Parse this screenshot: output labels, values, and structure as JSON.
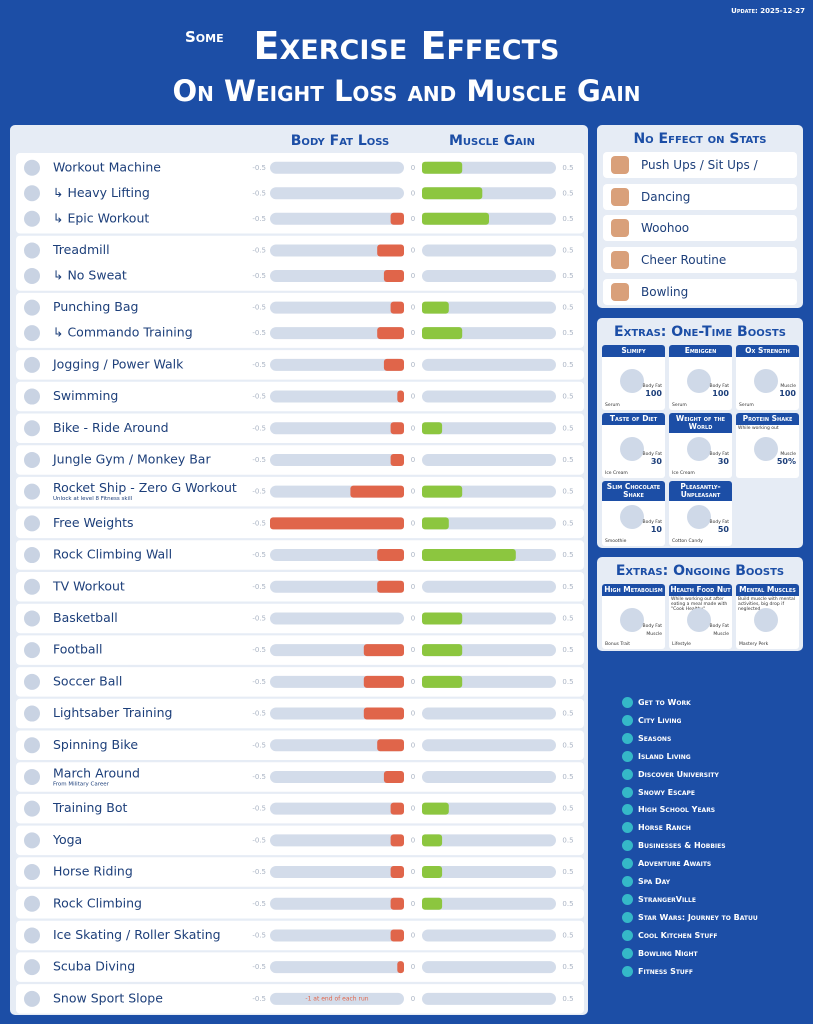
{
  "header": {
    "update": "Update: 2025-12-27",
    "prefix": "Some",
    "title": "Exercise Effects",
    "subtitle": "On Weight Loss and Muscle Gain"
  },
  "table": {
    "columns": [
      "Body Fat Loss",
      "Muscle Gain"
    ],
    "fat_range": [
      -0.5,
      0
    ],
    "muscle_range": [
      0,
      0.5
    ],
    "groups": [
      {
        "rows": [
          {
            "name": "Workout Machine",
            "fat": 0,
            "muscle": 0.15
          },
          {
            "name": "↳ Heavy Lifting",
            "fat": 0,
            "muscle": 0.225
          },
          {
            "name": "↳ Epic Workout",
            "fat": -0.05,
            "muscle": 0.25
          }
        ]
      },
      {
        "rows": [
          {
            "name": "Treadmill",
            "fat": -0.1,
            "muscle": 0
          },
          {
            "name": "↳ No Sweat",
            "fat": -0.075,
            "muscle": 0
          }
        ]
      },
      {
        "rows": [
          {
            "name": "Punching Bag",
            "fat": -0.05,
            "muscle": 0.1
          },
          {
            "name": "↳ Commando Training",
            "fat": -0.1,
            "muscle": 0.15
          }
        ]
      },
      {
        "rows": [
          {
            "name": "Jogging / Power Walk",
            "fat": -0.075,
            "muscle": 0
          }
        ]
      },
      {
        "rows": [
          {
            "name": "Swimming",
            "fat": -0.025,
            "muscle": 0
          }
        ]
      },
      {
        "rows": [
          {
            "name": "Bike - Ride Around",
            "fat": -0.05,
            "muscle": 0.075
          }
        ]
      },
      {
        "rows": [
          {
            "name": "Jungle Gym / Monkey Bar",
            "fat": -0.05,
            "muscle": 0
          }
        ]
      },
      {
        "rows": [
          {
            "name": "Rocket Ship - Zero G Workout",
            "note": "Unlock at level 8 Fitness skill",
            "fat": -0.2,
            "muscle": 0.15
          }
        ]
      },
      {
        "rows": [
          {
            "name": "Free Weights",
            "fat": -0.5,
            "muscle": 0.1
          }
        ]
      },
      {
        "rows": [
          {
            "name": "Rock Climbing Wall",
            "fat": -0.1,
            "muscle": 0.35
          }
        ]
      },
      {
        "rows": [
          {
            "name": "TV Workout",
            "fat": -0.1,
            "muscle": 0
          }
        ]
      },
      {
        "rows": [
          {
            "name": "Basketball",
            "fat": 0,
            "muscle": 0.15
          }
        ]
      },
      {
        "rows": [
          {
            "name": "Football",
            "fat": -0.15,
            "muscle": 0.15
          }
        ]
      },
      {
        "rows": [
          {
            "name": "Soccer Ball",
            "fat": -0.15,
            "muscle": 0.15
          }
        ]
      },
      {
        "rows": [
          {
            "name": "Lightsaber Training",
            "fat": -0.15,
            "muscle": 0
          }
        ]
      },
      {
        "rows": [
          {
            "name": "Spinning Bike",
            "fat": -0.1,
            "muscle": 0
          }
        ]
      },
      {
        "rows": [
          {
            "name": "March Around",
            "note": "From Military Career",
            "fat": -0.075,
            "muscle": 0
          }
        ]
      },
      {
        "rows": [
          {
            "name": "Training Bot",
            "fat": -0.05,
            "muscle": 0.1
          }
        ]
      },
      {
        "rows": [
          {
            "name": "Yoga",
            "fat": -0.05,
            "muscle": 0.075
          }
        ]
      },
      {
        "rows": [
          {
            "name": "Horse Riding",
            "fat": -0.05,
            "muscle": 0.075
          }
        ]
      },
      {
        "rows": [
          {
            "name": "Rock Climbing",
            "fat": -0.05,
            "muscle": 0.075
          }
        ]
      },
      {
        "rows": [
          {
            "name": "Ice Skating / Roller Skating",
            "fat": -0.05,
            "muscle": 0
          }
        ]
      },
      {
        "rows": [
          {
            "name": "Scuba Diving",
            "fat": -0.025,
            "muscle": 0
          }
        ]
      },
      {
        "rows": [
          {
            "name": "Snow Sport Slope",
            "bar_note": "-1 at end of each run",
            "fat": 0,
            "muscle": 0
          }
        ]
      }
    ]
  },
  "no_effect": {
    "title": "No Effect on Stats",
    "items": [
      "Push Ups / Sit Ups / Stretch",
      "Dancing",
      "Woohoo",
      "Cheer Routine",
      "Bowling"
    ]
  },
  "one_time": {
    "title": "Extras: One-Time Boosts",
    "cards": [
      {
        "title": "Slimify",
        "item": "Serum",
        "effects": [
          {
            "stat": "Body Fat",
            "amount": "100"
          }
        ]
      },
      {
        "title": "Embiggen",
        "item": "Serum",
        "effects": [
          {
            "stat": "Body Fat",
            "amount": "100"
          }
        ]
      },
      {
        "title": "Ox Strength",
        "item": "Serum",
        "effects": [
          {
            "stat": "Muscle",
            "amount": "100"
          }
        ]
      },
      {
        "title": "Taste of Diet",
        "item": "Ice Cream",
        "effects": [
          {
            "stat": "Body Fat",
            "amount": "30"
          }
        ]
      },
      {
        "title": "Weight of the World",
        "item": "Ice Cream",
        "effects": [
          {
            "stat": "Body Fat",
            "amount": "30"
          }
        ]
      },
      {
        "title": "Protein Shake",
        "note": "While working out",
        "effects": [
          {
            "stat": "Muscle",
            "amount": "50%"
          }
        ]
      },
      {
        "title": "Slim Chocolate Shake",
        "item": "Smoothie",
        "effects": [
          {
            "stat": "Body Fat",
            "amount": "10"
          }
        ]
      },
      {
        "title": "Pleasantly-Unpleasant",
        "item": "Cotton Candy",
        "effects": [
          {
            "stat": "Body Fat",
            "amount": "50"
          }
        ]
      }
    ]
  },
  "ongoing": {
    "title": "Extras: Ongoing Boosts",
    "cards": [
      {
        "title": "High Metabolism",
        "item": "Bonus Trait",
        "effects": [
          {
            "stat": "Body Fat"
          },
          {
            "stat": "Muscle"
          }
        ]
      },
      {
        "title": "Health Food Nut",
        "note": "While working out after eating a meal made with \"Cook Healthy\"",
        "item": "Lifestyle",
        "effects": [
          {
            "stat": "Body Fat"
          },
          {
            "stat": "Muscle"
          }
        ]
      },
      {
        "title": "Mental Muscles",
        "note": "Build muscle with mental activities, big drop if neglected",
        "item": "Mastery Perk",
        "effects": []
      }
    ]
  },
  "packs": [
    "Get to Work",
    "City Living",
    "Seasons",
    "Island Living",
    "Discover University",
    "Snowy Escape",
    "High School Years",
    "Horse Ranch",
    "Businesses & Hobbies",
    "Adventure Awaits",
    "Spa Day",
    "StrangerVille",
    "Star Wars: Journey to Batuu",
    "Cool Kitchen Stuff",
    "Bowling Night",
    "Fitness Stuff"
  ]
}
